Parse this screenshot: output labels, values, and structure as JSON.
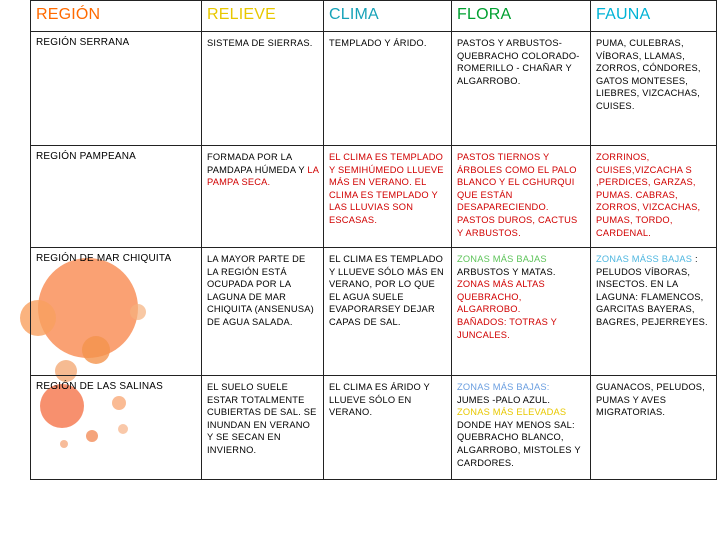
{
  "header": {
    "region": "REGIÓN",
    "relieve": "RELIEVE",
    "clima": "CLIMA",
    "flora": "FLORA",
    "fauna": "FAUNA"
  },
  "rows": [
    {
      "region": "REGIÓN SERRANA",
      "relieve": "SISTEMA DE SIERRAS.",
      "clima": "TEMPLADO Y ÁRIDO.",
      "flora": "PASTOS Y ARBUSTOS- QUEBRACHO COLORADO- ROMERILLO - CHAÑAR Y ALGARROBO.",
      "fauna": "PUMA, CULEBRAS, VÍBORAS, LLAMAS, ZORROS, CÓNDORES, GATOS MONTESES, LIEBRES, VIZCACHAS, CUISES."
    },
    {
      "region": "REGIÓN PAMPEANA",
      "relieve_a": "FORMADA POR  LA PAMDAPA HÚMEDA Y",
      "relieve_b": "LA PAMPA SECA.",
      "clima_a": "EL  CLIMA ES TEMPLADO Y SEMIHÚMEDO LLUEVE MÁS EN VERANO.",
      "clima_b": "EL CLIMA ES TEMPLADO Y LAS LLUVIAS SON ESCASAS.",
      "flora": "PASTOS TIERNOS Y ÁRBOLES COMO EL PALO BLANCO  Y EL CGHURQUI QUE ESTÁN DESAPARECIENDO. PASTOS DUROS, CACTUS Y ARBUSTOS.",
      "fauna": "ZORRINOS, CUISES,VIZCACHA S ,PERDICES, GARZAS, PUMAS. CABRAS, ZORROS, VIZCACHAS, PUMAS, TORDO, CARDENAL."
    },
    {
      "region": "REGIÓN DE MAR  CHIQUITA",
      "relieve": "LA MAYOR PARTE DE LA REGIÓN  ESTÁ OCUPADA POR LA LAGUNA DE MAR CHIQUITA (ANSENUSA) DE AGUA SALADA.",
      "clima": "EL CLIMA ES TEMPLADO Y LLUEVE SÓLO MÁS EN VERANO, POR LO QUE EL AGUA SUELE EVAPORARSEY DEJAR CAPAS DE SAL.",
      "flora_a": "ZONAS MÁS BAJAS",
      "flora_b": " ARBUSTOS Y MATAS.",
      "flora_c": "ZONAS MÁS ALTAS",
      "flora_d": "QUEBRACHO, ALGARROBO.",
      "flora_e": "BAÑADOS: TOTRAS Y JUNCALES.",
      "fauna_a": "ZONAS MÁSS BAJAS",
      "fauna_b": " : PELUDOS VÍBORAS, INSECTOS.",
      "fauna_c": "EN LA LAGUNA: FLAMENCOS, GARCITAS BAYERAS, BAGRES, PEJERREYES."
    },
    {
      "region": "REGIÓN DE LAS SALINAS",
      "relieve": "EL SUELO SUELE ESTAR TOTALMENTE CUBIERTAS DE SAL. SE INUNDAN EN VERANO Y SE SECAN EN INVIERNO.",
      "clima": "EL CLIMA ES ÁRIDO  Y LLUEVE SÓLO EN VERANO.",
      "flora_a": "ZONAS MÁS BAJAS:",
      "flora_b": "JUMES  -PALO AZUL.",
      "flora_c": "ZONAS MÁS ELEVADAS",
      "flora_d": "DONDE HAY MENOS SAL:  QUEBRACHO BLANCO, ALGARROBO, MISTOLES Y CARDORES.",
      "fauna": "GUANACOS, PELUDOS, PUMAS Y AVES MIGRATORIAS."
    }
  ],
  "colors": {
    "header_region": "#ff6a00",
    "header_relieve": "#e8c800",
    "header_clima": "#16a2b8",
    "header_flora": "#00a030",
    "header_fauna": "#00b3d6",
    "decor_circles": "#f9915b"
  }
}
